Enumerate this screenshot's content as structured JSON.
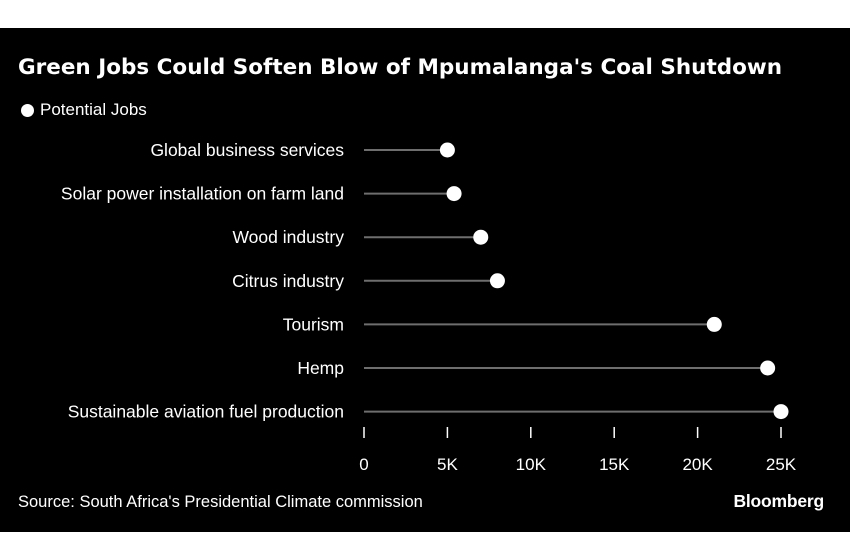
{
  "title": "Green Jobs Could Soften Blow of Mpumalanga's Coal Shutdown",
  "legend": "Potential Jobs",
  "source": "Source: South Africa's Presidential Climate commission",
  "brand": "Bloomberg",
  "colors": {
    "background": "#000000",
    "text": "#ffffff",
    "dot": "#ffffff",
    "stem": "#6e6e6e"
  },
  "chart_data": {
    "type": "lollipop",
    "orientation": "horizontal",
    "categories": [
      "Global business services",
      "Solar power installation on farm land",
      "Wood industry",
      "Citrus industry",
      "Tourism",
      "Hemp",
      "Sustainable aviation fuel production"
    ],
    "series": [
      {
        "name": "Potential Jobs",
        "values": [
          5000,
          5400,
          7000,
          8000,
          21000,
          24200,
          25000
        ]
      }
    ],
    "xlim": [
      0,
      25000
    ],
    "xticks": [
      0,
      5000,
      10000,
      15000,
      20000,
      25000
    ],
    "xtick_labels": [
      "0",
      "5K",
      "10K",
      "15K",
      "20K",
      "25K"
    ],
    "grid": false,
    "legend_position": "top-left"
  }
}
